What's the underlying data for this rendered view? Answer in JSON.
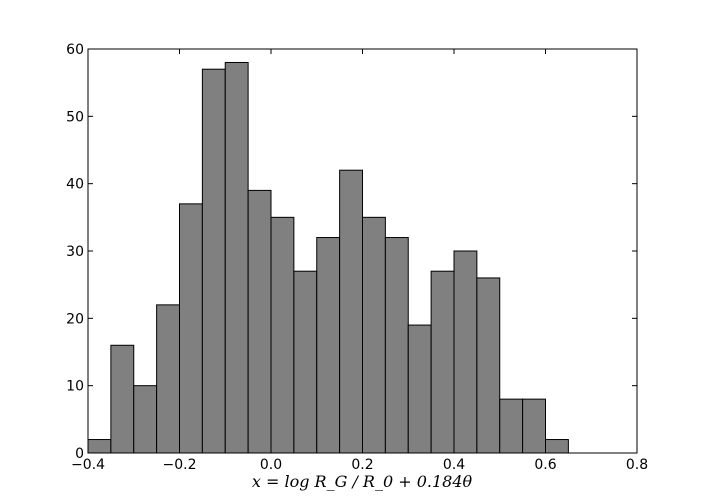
{
  "chart_data": {
    "type": "histogram",
    "xlabel": "x = log R_G / R_0 + 0.184θ",
    "bins": [
      -0.4,
      -0.35,
      -0.3,
      -0.25,
      -0.2,
      -0.15,
      -0.1,
      -0.05,
      0,
      0.05,
      0.1,
      0.15,
      0.2,
      0.25,
      0.3,
      0.35,
      0.4,
      0.45,
      0.5,
      0.55,
      0.6,
      0.65
    ],
    "values": [
      2,
      16,
      10,
      22,
      37,
      57,
      58,
      39,
      35,
      27,
      32,
      42,
      35,
      32,
      19,
      27,
      30,
      26,
      8,
      8,
      2
    ],
    "color": "#808080",
    "xlim": [
      -0.4,
      0.8
    ],
    "xticks": [
      {
        "value": -0.4,
        "label": "−0.4"
      },
      {
        "value": -0.2,
        "label": "−0.2"
      },
      {
        "value": 0,
        "label": "0.0"
      },
      0.2,
      0.4,
      0.6,
      0.8
    ],
    "ylim": [
      0,
      60
    ],
    "yticks": [
      0,
      10,
      20,
      30,
      40,
      50,
      60
    ]
  }
}
